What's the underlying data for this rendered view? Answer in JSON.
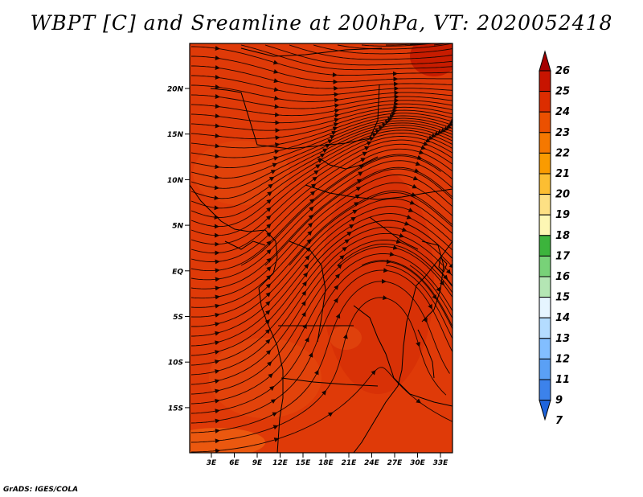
{
  "title": "WBPT [C] and Sreamline at 200hPa, VT: 2020052418",
  "credit": "GrADS: IGES/COLA",
  "map": {
    "lat_labels": [
      "20N",
      "15N",
      "10N",
      "5N",
      "EQ",
      "5S",
      "10S",
      "15S"
    ],
    "lon_labels": [
      "3E",
      "6E",
      "9E",
      "12E",
      "15E",
      "18E",
      "21E",
      "24E",
      "27E",
      "30E",
      "33E"
    ],
    "base_color": "#e03c0a",
    "streamline_color": "#1a0500"
  },
  "colorbar": {
    "levels": [
      "26",
      "25",
      "24",
      "23",
      "22",
      "21",
      "20",
      "19",
      "18",
      "17",
      "16",
      "15",
      "14",
      "13",
      "12",
      "11",
      "9",
      "7"
    ],
    "colors": [
      "#a50000",
      "#c81400",
      "#dc2d00",
      "#eb5000",
      "#f57800",
      "#fa9b00",
      "#fcbe32",
      "#fde084",
      "#fdf7b4",
      "#3cb43c",
      "#78d278",
      "#b4e6b4",
      "#e6f5ff",
      "#b4dcff",
      "#82beff",
      "#5aa0f5",
      "#3c82eb",
      "#1e64dc"
    ]
  }
}
